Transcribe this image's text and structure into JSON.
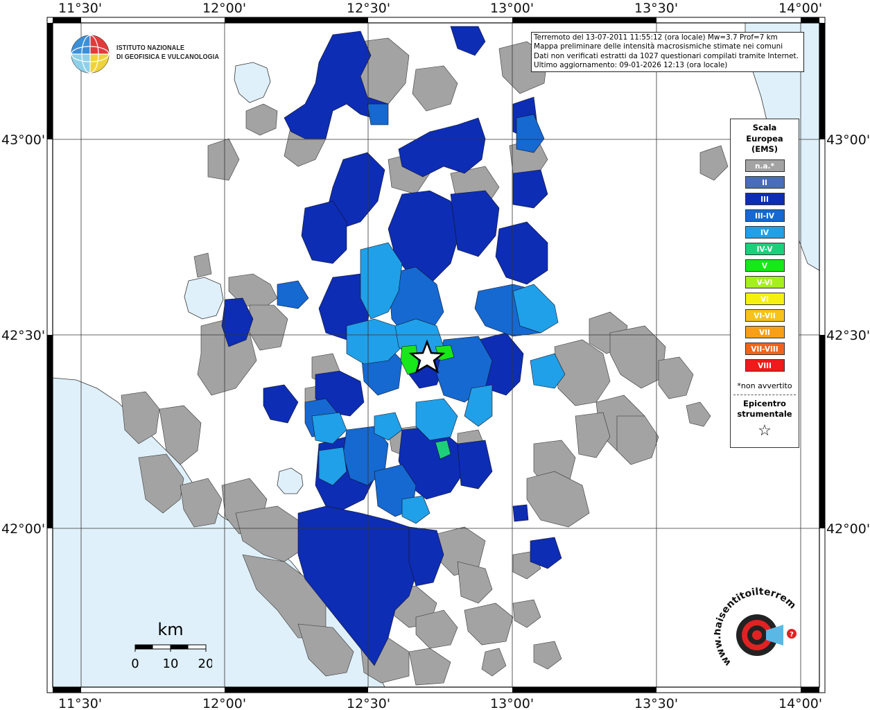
{
  "map": {
    "lon_labels": [
      "11°30'",
      "12°00'",
      "12°30'",
      "13°00'",
      "13°30'",
      "14°00'"
    ],
    "lat_labels": [
      "43°00'",
      "42°30'",
      "42°00'"
    ],
    "colors": {
      "sea": "#dff0fa",
      "land_bg": "#ffffff",
      "na": "#a3a3a3",
      "II": "#4a6db8",
      "III": "#0d2db5",
      "III-IV": "#1569d1",
      "IV": "#20a0e8",
      "IV-V": "#1dcf7a",
      "V": "#18e81a"
    }
  },
  "info": {
    "line1": "Terremoto del 13-07-2011 11:55:12 (ora locale) Mw=3.7 Prof=7 km",
    "line2": "Mappa preliminare delle intensità macrosismiche stimate nei comuni",
    "line3": "Dati non verificati estratti da 1027 questionari compilati tramite Internet.",
    "line4": "Ultimo aggiornamento: 09-01-2026 12:13 (ora locale)"
  },
  "legend": {
    "title_line1": "Scala",
    "title_line2": "Europea",
    "title_line3": "(EMS)",
    "items": [
      {
        "label": "n.a.*",
        "color": "#a3a3a3"
      },
      {
        "label": "II",
        "color": "#4a6db8"
      },
      {
        "label": "III",
        "color": "#0d2db5"
      },
      {
        "label": "III-IV",
        "color": "#1569d1"
      },
      {
        "label": "IV",
        "color": "#20a0e8"
      },
      {
        "label": "IV-V",
        "color": "#1dcf7a"
      },
      {
        "label": "V",
        "color": "#18e81a"
      },
      {
        "label": "V-VI",
        "color": "#a4f01a"
      },
      {
        "label": "VI",
        "color": "#f5f010"
      },
      {
        "label": "VI-VII",
        "color": "#f7c21a"
      },
      {
        "label": "VII",
        "color": "#f7a017"
      },
      {
        "label": "VII-VIII",
        "color": "#f0641a"
      },
      {
        "label": "VIII",
        "color": "#f01a1a"
      }
    ],
    "note": "*non avvertito",
    "epicenter_line1": "Epicentro",
    "epicenter_line2": "strumentale",
    "epicenter_symbol": "☆"
  },
  "logo": {
    "line1": "ISTITUTO NAZIONALE",
    "line2": "DI GEOFISICA E VULCANOLOGIA"
  },
  "scalebar": {
    "unit": "km",
    "ticks": [
      "0",
      "10",
      "20"
    ]
  },
  "hsi_logo": {
    "text": "www.haisentitoilterremoto.it"
  }
}
